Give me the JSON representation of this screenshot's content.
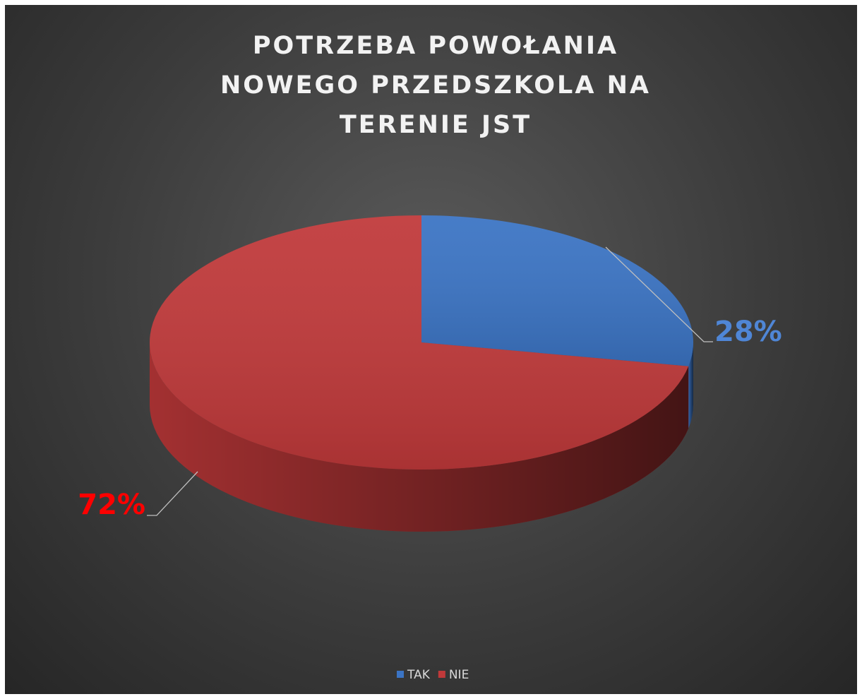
{
  "chart_data": {
    "type": "pie",
    "title": "POTRZEBA POWOŁANIA NOWEGO PRZEDSZKOLA NA TERENIE JST",
    "categories": [
      "TAK",
      "NIE"
    ],
    "values": [
      28,
      72
    ],
    "value_labels": [
      "28%",
      "72%"
    ],
    "colors": [
      "#3b74c4",
      "#c0393a"
    ],
    "label_colors": [
      "#4f86d6",
      "#ff0000"
    ],
    "legend": "bottom"
  }
}
